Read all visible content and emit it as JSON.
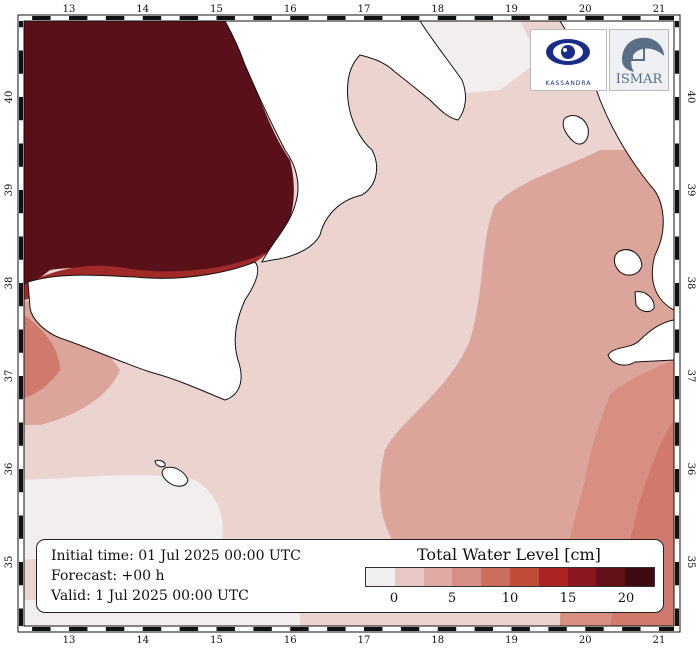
{
  "map": {
    "longitude_ticks": [
      "13",
      "14",
      "15",
      "16",
      "17",
      "18",
      "19",
      "20",
      "21"
    ],
    "latitude_ticks": [
      "35",
      "36",
      "37",
      "38",
      "39",
      "40"
    ],
    "colors": {
      "land": "#ffffff",
      "coastline": "#111111",
      "sea_base": "#ebd3d0"
    }
  },
  "info": {
    "initial_time": "Initial time: 01 Jul 2025 00:00 UTC",
    "forecast": "Forecast: +00 h",
    "valid": "Valid:  1 Jul 2025 00:00 UTC"
  },
  "legend": {
    "title": "Total Water Level [cm]",
    "tick_labels": [
      "0",
      "5",
      "10",
      "15",
      "20"
    ],
    "colors": [
      "#f2efef",
      "#e8c8c4",
      "#dfaba4",
      "#d58f84",
      "#cb6e5e",
      "#bf4d3a",
      "#ad2323",
      "#8c1620",
      "#641019",
      "#3c0a10"
    ]
  },
  "logos": {
    "left": {
      "icon": "eye-logo-icon",
      "text": "KASSANDRA"
    },
    "right": {
      "icon": "ismar-logo-icon",
      "text": "ISMAR"
    }
  }
}
